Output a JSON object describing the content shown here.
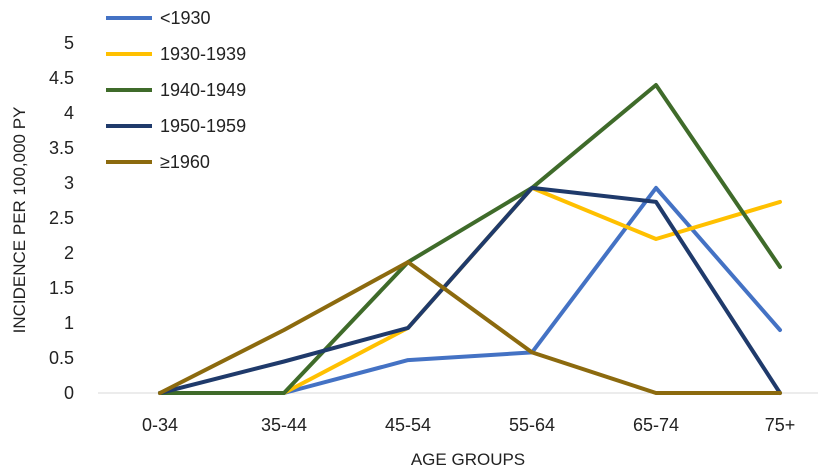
{
  "chart_data": {
    "type": "line",
    "categories": [
      "0-34",
      "35-44",
      "45-54",
      "55-64",
      "65-74",
      "75+"
    ],
    "xlabel": "AGE GROUPS",
    "ylabel": "INCIDENCE PER 100,000 PY",
    "ylim": [
      0,
      5
    ],
    "yticks": [
      "0",
      "0.5",
      "1",
      "1.5",
      "2",
      "2.5",
      "3",
      "3.5",
      "4",
      "4.5",
      "5"
    ],
    "grid": false,
    "legend_position": "top-left",
    "series": [
      {
        "name": "<1930",
        "color": "#4472C4",
        "values": [
          0,
          0,
          0.47,
          0.58,
          2.93,
          0.9
        ]
      },
      {
        "name": "1930-1939",
        "color": "#FFC000",
        "values": [
          0,
          0,
          0.93,
          2.93,
          2.2,
          2.73
        ]
      },
      {
        "name": "1940-1949",
        "color": "#3F6B2A",
        "values": [
          0,
          0,
          1.87,
          2.93,
          4.4,
          1.8
        ]
      },
      {
        "name": "1950-1959",
        "color": "#1F3A6B",
        "values": [
          0,
          0.45,
          0.93,
          2.93,
          2.73,
          0
        ]
      },
      {
        "name": "≥1960",
        "color": "#8C6A0E",
        "values": [
          0,
          0.9,
          1.87,
          0.58,
          0,
          0
        ]
      }
    ]
  }
}
